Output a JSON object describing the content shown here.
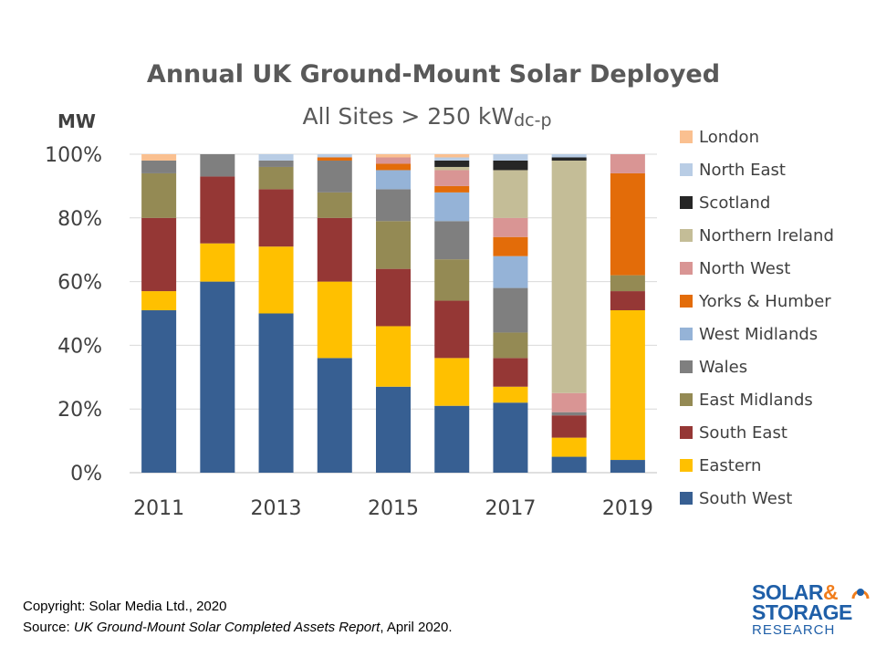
{
  "chart_data": {
    "type": "bar",
    "stacked": true,
    "normalized": true,
    "title": "Annual UK Ground-Mount Solar Deployed",
    "subtitle_main": "All Sites > 250 kW",
    "subtitle_sub": "dc-p",
    "ylabel": "MW",
    "ylim": [
      0,
      100
    ],
    "yticks": [
      "0%",
      "20%",
      "40%",
      "60%",
      "80%",
      "100%"
    ],
    "categories": [
      "2011",
      "2012",
      "2013",
      "2014",
      "2015",
      "2016",
      "2017",
      "2018",
      "2019"
    ],
    "xtick_labels": [
      "2011",
      "",
      "2013",
      "",
      "2015",
      "",
      "2017",
      "",
      "2019"
    ],
    "grid": true,
    "legend_position": "right",
    "series": [
      {
        "name": "South West",
        "color": "#375F92",
        "values": [
          51,
          60,
          50,
          36,
          27,
          21,
          22,
          5,
          4
        ]
      },
      {
        "name": "Eastern",
        "color": "#FFC000",
        "values": [
          6,
          12,
          21,
          24,
          19,
          15,
          5,
          6,
          47
        ]
      },
      {
        "name": "South East",
        "color": "#953735",
        "values": [
          23,
          21,
          18,
          20,
          18,
          18,
          9,
          7,
          6
        ]
      },
      {
        "name": "East Midlands",
        "color": "#948A54",
        "values": [
          14,
          0,
          7,
          8,
          15,
          13,
          8,
          0,
          5
        ]
      },
      {
        "name": "Wales",
        "color": "#7F7F7F",
        "values": [
          4,
          7,
          2,
          10,
          10,
          12,
          14,
          1,
          0
        ]
      },
      {
        "name": "West Midlands",
        "color": "#95B3D7",
        "values": [
          0,
          0,
          0,
          0,
          6,
          9,
          10,
          0,
          0
        ]
      },
      {
        "name": "Yorks & Humber",
        "color": "#E36C09",
        "values": [
          0,
          0,
          0,
          1,
          2,
          2,
          6,
          0,
          32
        ]
      },
      {
        "name": "North West",
        "color": "#D99594",
        "values": [
          0,
          0,
          0,
          0,
          2,
          5,
          6,
          6,
          6
        ]
      },
      {
        "name": "Northern Ireland",
        "color": "#C4BD97",
        "values": [
          0,
          0,
          0,
          0,
          0,
          1,
          15,
          73,
          0
        ]
      },
      {
        "name": "Scotland",
        "color": "#262626",
        "values": [
          0,
          0,
          0,
          0,
          0,
          2,
          3,
          1,
          0
        ]
      },
      {
        "name": "North East",
        "color": "#B9CDE5",
        "values": [
          0,
          0,
          2,
          1,
          0,
          1,
          2,
          1,
          0
        ]
      },
      {
        "name": "London",
        "color": "#FAC090",
        "values": [
          2,
          0,
          0,
          0,
          1,
          1,
          0,
          0,
          0
        ]
      }
    ]
  },
  "legend_order": [
    "London",
    "North East",
    "Scotland",
    "Northern Ireland",
    "North West",
    "Yorks & Humber",
    "West Midlands",
    "Wales",
    "East Midlands",
    "South East",
    "Eastern",
    "South West"
  ],
  "footer": {
    "copyright": "Copyright: Solar Media Ltd., 2020",
    "source_prefix": "Source: ",
    "source_title": "UK Ground-Mount Solar Completed Assets Report",
    "source_suffix": ", April 2020."
  },
  "logo": {
    "line1": "SOLAR",
    "amp": "&",
    "line2": "STORAGE",
    "line3": "RESEARCH",
    "colors": {
      "blue": "#1F5FA8",
      "orange": "#F07D1C"
    }
  }
}
